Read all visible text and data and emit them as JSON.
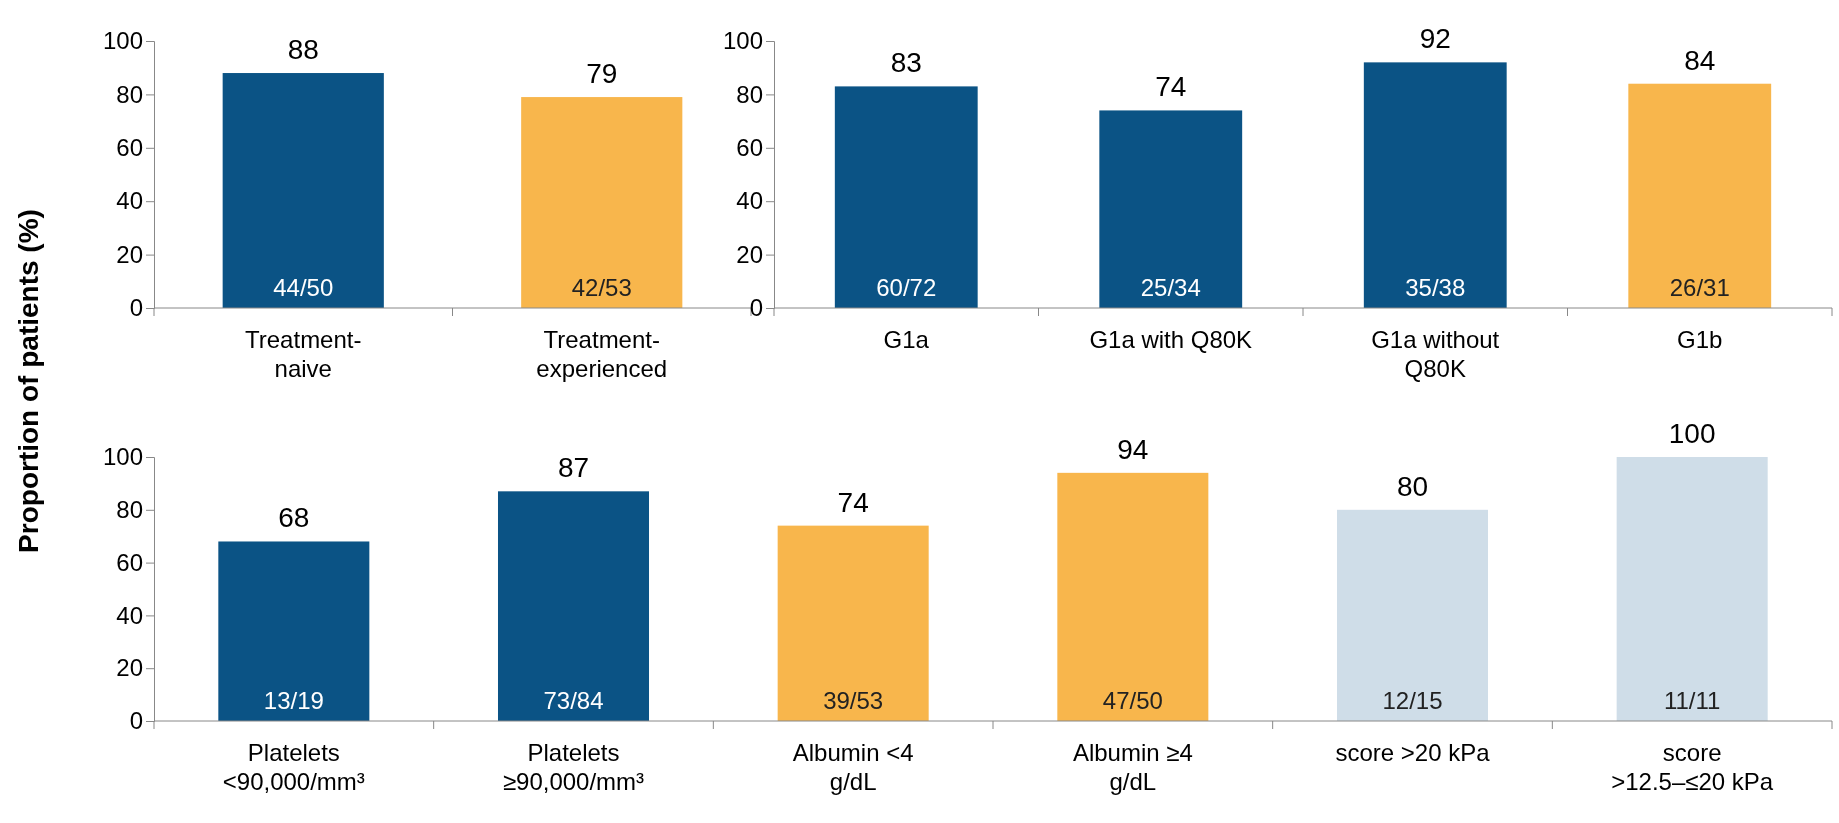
{
  "chart_data": [
    {
      "type": "bar",
      "ylabel": "Proportion of patients (%)",
      "categories": [
        "Treatment-naive",
        "Treatment-experienced"
      ],
      "values": [
        88,
        79
      ],
      "colors": [
        "#0b5385",
        "#f8b64c"
      ],
      "ylim": [
        0,
        100
      ],
      "yticks": [
        0,
        20,
        40,
        60,
        80,
        100
      ],
      "data_labels": true,
      "annotations": [
        "44/50",
        "42/53"
      ]
    },
    {
      "type": "bar",
      "categories": [
        "G1a",
        "G1a with Q80K",
        "G1a without Q80K",
        "G1b"
      ],
      "values": [
        83,
        74,
        92,
        84
      ],
      "colors": [
        "#0b5385",
        "#0b5385",
        "#0b5385",
        "#f8b64c"
      ],
      "ylim": [
        0,
        100
      ],
      "yticks": [
        0,
        20,
        40,
        60,
        80,
        100
      ],
      "data_labels": true,
      "annotations": [
        "60/72",
        "25/34",
        "35/38",
        "26/31"
      ]
    },
    {
      "type": "bar",
      "categories": [
        "Platelets <90,000/mm³",
        "Platelets ≥90,000/mm³",
        "Albumin <4 g/dL",
        "Albumin ≥4 g/dL",
        "score >20 kPa",
        "score >12.5–≤20 kPa"
      ],
      "values": [
        68,
        87,
        74,
        94,
        80,
        100
      ],
      "colors": [
        "#0b5385",
        "#0b5385",
        "#f8b64c",
        "#f8b64c",
        "#cfdde8",
        "#cfdde8"
      ],
      "ylim": [
        0,
        100
      ],
      "yticks": [
        0,
        20,
        40,
        60,
        80,
        100
      ],
      "data_labels": true,
      "annotations": [
        "13/19",
        "73/84",
        "39/53",
        "47/50",
        "12/15",
        "11/11"
      ]
    }
  ]
}
